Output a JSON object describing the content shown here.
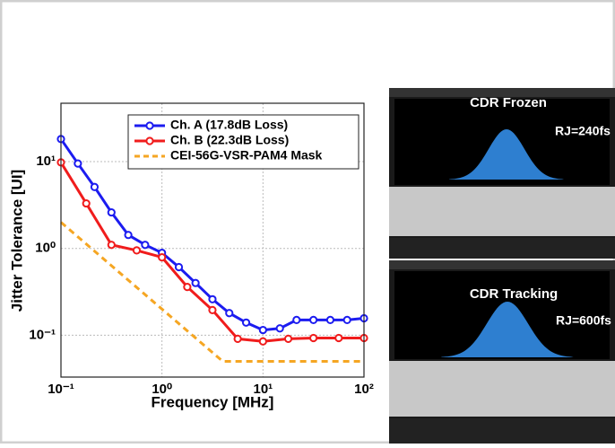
{
  "chart_data": {
    "type": "line",
    "log_x": true,
    "log_y": true,
    "xlabel": "Frequency [MHz]",
    "ylabel": "Jitter Tolerance [UI]",
    "xlim": [
      0.1,
      100
    ],
    "ylim": [
      0.033,
      47
    ],
    "xticks": [
      {
        "value": 0.1,
        "label": "10⁻¹"
      },
      {
        "value": 1,
        "label": "10⁰"
      },
      {
        "value": 10,
        "label": "10¹"
      },
      {
        "value": 100,
        "label": "10²"
      }
    ],
    "yticks": [
      {
        "value": 0.1,
        "label": "10⁻¹"
      },
      {
        "value": 1,
        "label": "10⁰"
      },
      {
        "value": 10,
        "label": "10¹"
      }
    ],
    "grid": true,
    "legend": "upper right",
    "series": [
      {
        "name": "Ch. A (17.8dB Loss)",
        "color": "#1c1cf0",
        "marker": true,
        "x": [
          0.1,
          0.147,
          0.215,
          0.316,
          0.464,
          0.681,
          1,
          1.47,
          2.15,
          3.16,
          4.64,
          6.81,
          10,
          14.7,
          21.5,
          31.6,
          46.4,
          68.1,
          100
        ],
        "values": [
          18.2,
          9.5,
          5.1,
          2.6,
          1.43,
          1.1,
          0.89,
          0.61,
          0.4,
          0.26,
          0.18,
          0.14,
          0.115,
          0.12,
          0.15,
          0.15,
          0.15,
          0.15,
          0.157
        ]
      },
      {
        "name": "Ch. B (22.3dB Loss)",
        "color": "#f01c1c",
        "marker": true,
        "x": [
          0.1,
          0.178,
          0.316,
          0.562,
          1,
          1.78,
          3.16,
          5.62,
          10,
          17.8,
          31.6,
          56.2,
          100
        ],
        "values": [
          9.8,
          3.3,
          1.1,
          0.95,
          0.79,
          0.36,
          0.195,
          0.091,
          0.085,
          0.091,
          0.093,
          0.093,
          0.093
        ]
      },
      {
        "name": "CEI-56G-VSR-PAM4 Mask",
        "color": "#f5a623",
        "dashed": true,
        "marker": false,
        "x": [
          0.1,
          4,
          100
        ],
        "values": [
          2,
          0.05,
          0.05
        ]
      }
    ]
  },
  "insets": [
    {
      "title": "CDR Frozen",
      "label": "RJ=240fs"
    },
    {
      "title": "CDR Tracking",
      "label": "RJ=600fs"
    }
  ]
}
